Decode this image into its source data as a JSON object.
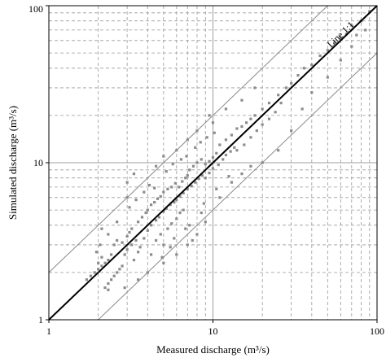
{
  "chart_data": {
    "type": "scatter",
    "title": "",
    "xlabel": "Measured discharge (m³/s)",
    "ylabel": "Simulated discharge (m³/s)",
    "xscale": "log",
    "yscale": "log",
    "xlim": [
      1,
      100
    ],
    "ylim": [
      1,
      100
    ],
    "grid": true,
    "legend": "none",
    "x_ticks": [
      1,
      10,
      100
    ],
    "x_tick_labels": [
      "1",
      "10",
      "100"
    ],
    "y_ticks": [
      1,
      10,
      100
    ],
    "y_tick_labels": [
      "1",
      "10",
      "100"
    ],
    "reference_lines": [
      {
        "label": "Line 1:1",
        "factor": 1
      },
      {
        "label": "",
        "factor": 2
      },
      {
        "label": "",
        "factor": 0.5
      }
    ],
    "annotations": [
      "Line 1:1"
    ],
    "colors": {
      "points": "#8c8c8c",
      "one_to_one": "#000000",
      "bounds": "#8a8a8a",
      "grid": "#9a9a9a"
    },
    "series": [
      {
        "values": [
          [
            1.7,
            1.8
          ],
          [
            1.8,
            1.9
          ],
          [
            1.9,
            2.0
          ],
          [
            2.0,
            2.1
          ],
          [
            2.1,
            2.2
          ],
          [
            2.2,
            2.3
          ],
          [
            2.3,
            2.4
          ],
          [
            2.4,
            2.6
          ],
          [
            2.2,
            1.6
          ],
          [
            2.3,
            1.7
          ],
          [
            2.4,
            1.8
          ],
          [
            2.5,
            1.9
          ],
          [
            2.6,
            2.0
          ],
          [
            2.7,
            2.1
          ],
          [
            2.8,
            2.2
          ],
          [
            2.3,
            1.55
          ],
          [
            2.1,
            2.5
          ],
          [
            2.0,
            2.3
          ],
          [
            2.5,
            3.0
          ],
          [
            2.6,
            3.2
          ],
          [
            2.8,
            3.1
          ],
          [
            3.0,
            3.4
          ],
          [
            3.1,
            3.6
          ],
          [
            3.2,
            3.8
          ],
          [
            2.9,
            2.6
          ],
          [
            3.0,
            2.8
          ],
          [
            3.2,
            3.0
          ],
          [
            3.4,
            3.2
          ],
          [
            3.3,
            2.4
          ],
          [
            3.5,
            2.7
          ],
          [
            3.6,
            2.9
          ],
          [
            3.8,
            3.3
          ],
          [
            3.5,
            4.2
          ],
          [
            3.7,
            4.5
          ],
          [
            3.9,
            4.8
          ],
          [
            4.0,
            5.0
          ],
          [
            4.2,
            5.4
          ],
          [
            4.4,
            5.6
          ],
          [
            4.6,
            5.9
          ],
          [
            4.8,
            6.1
          ],
          [
            4.0,
            3.7
          ],
          [
            4.2,
            4.0
          ],
          [
            4.5,
            4.3
          ],
          [
            4.7,
            4.5
          ],
          [
            5.0,
            4.9
          ],
          [
            5.2,
            5.1
          ],
          [
            5.5,
            5.4
          ],
          [
            5.8,
            5.6
          ],
          [
            4.5,
            3.2
          ],
          [
            4.8,
            3.5
          ],
          [
            5.0,
            3.0
          ],
          [
            5.3,
            3.8
          ],
          [
            5.6,
            4.1
          ],
          [
            6.0,
            4.4
          ],
          [
            6.3,
            4.8
          ],
          [
            6.6,
            5.0
          ],
          [
            5.0,
            6.5
          ],
          [
            5.3,
            6.8
          ],
          [
            5.6,
            7.0
          ],
          [
            5.9,
            7.4
          ],
          [
            6.2,
            7.0
          ],
          [
            6.5,
            7.6
          ],
          [
            6.8,
            8.0
          ],
          [
            7.0,
            8.3
          ],
          [
            6.0,
            5.8
          ],
          [
            6.3,
            6.1
          ],
          [
            6.6,
            6.4
          ],
          [
            7.0,
            6.8
          ],
          [
            7.4,
            7.1
          ],
          [
            7.8,
            7.5
          ],
          [
            8.2,
            7.9
          ],
          [
            8.6,
            8.3
          ],
          [
            7.2,
            9.0
          ],
          [
            7.6,
            9.5
          ],
          [
            8.0,
            10.0
          ],
          [
            8.5,
            10.5
          ],
          [
            9.0,
            9.8
          ],
          [
            9.5,
            10.2
          ],
          [
            10.0,
            10.8
          ],
          [
            10.5,
            11.5
          ],
          [
            9.0,
            8.0
          ],
          [
            9.5,
            8.6
          ],
          [
            10.0,
            9.2
          ],
          [
            10.8,
            9.7
          ],
          [
            11.5,
            10.5
          ],
          [
            12.0,
            11.2
          ],
          [
            12.8,
            11.8
          ],
          [
            13.5,
            12.5
          ],
          [
            11.0,
            13.0
          ],
          [
            12.0,
            14.0
          ],
          [
            13.0,
            15.0
          ],
          [
            14.0,
            16.5
          ],
          [
            15.0,
            17.0
          ],
          [
            16.0,
            18.0
          ],
          [
            17.0,
            19.0
          ],
          [
            18.0,
            20.0
          ],
          [
            14.0,
            12.0
          ],
          [
            15.5,
            13.0
          ],
          [
            17.0,
            14.5
          ],
          [
            18.5,
            16.0
          ],
          [
            20.0,
            17.5
          ],
          [
            22.0,
            19.0
          ],
          [
            24.0,
            21.0
          ],
          [
            26.0,
            24.0
          ],
          [
            20.0,
            22.0
          ],
          [
            22.0,
            24.0
          ],
          [
            25.0,
            27.0
          ],
          [
            28.0,
            30.0
          ],
          [
            30.0,
            32.0
          ],
          [
            33.0,
            36.0
          ],
          [
            36.0,
            40.0
          ],
          [
            40.0,
            42.0
          ],
          [
            45.0,
            48.0
          ],
          [
            50.0,
            52.0
          ],
          [
            55.0,
            58.0
          ],
          [
            60.0,
            62.0
          ],
          [
            65.0,
            66.0
          ],
          [
            70.0,
            75.0
          ],
          [
            80.0,
            80.0
          ],
          [
            90.0,
            92.0
          ],
          [
            3.0,
            7.5
          ],
          [
            3.3,
            8.5
          ],
          [
            3.0,
            6.0
          ],
          [
            4.5,
            9.5
          ],
          [
            5.0,
            11.0
          ],
          [
            6.0,
            12.0
          ],
          [
            7.0,
            14.0
          ],
          [
            8.0,
            16.0
          ],
          [
            2.9,
            1.6
          ],
          [
            3.5,
            1.8
          ],
          [
            4.0,
            2.0
          ],
          [
            5.0,
            2.3
          ],
          [
            6.0,
            2.6
          ],
          [
            7.0,
            3.0
          ],
          [
            8.0,
            3.5
          ],
          [
            9.0,
            4.2
          ],
          [
            4.2,
            2.6
          ],
          [
            5.5,
            2.9
          ],
          [
            6.8,
            3.8
          ],
          [
            8.5,
            4.8
          ],
          [
            11.0,
            6.0
          ],
          [
            13.0,
            7.5
          ],
          [
            15.0,
            8.5
          ],
          [
            17.0,
            9.5
          ],
          [
            9.5,
            20.0
          ],
          [
            10.0,
            18.0
          ],
          [
            12.0,
            22.0
          ],
          [
            15.0,
            25.0
          ],
          [
            18.0,
            30.0
          ],
          [
            7.5,
            3.2
          ],
          [
            20.0,
            10.0
          ],
          [
            25.0,
            12.0
          ],
          [
            30.0,
            16.0
          ],
          [
            35.0,
            22.0
          ],
          [
            40.0,
            28.0
          ],
          [
            50.0,
            35.0
          ],
          [
            60.0,
            45.0
          ],
          [
            70.0,
            55.0
          ],
          [
            75.0,
            65.0
          ],
          [
            85.0,
            70.0
          ],
          [
            2.1,
            3.8
          ],
          [
            2.3,
            3.5
          ],
          [
            2.6,
            4.2
          ],
          [
            3.1,
            5.2
          ],
          [
            3.4,
            5.8
          ],
          [
            3.8,
            6.5
          ],
          [
            4.1,
            7.2
          ],
          [
            4.4,
            6.9
          ],
          [
            5.2,
            8.8
          ],
          [
            5.7,
            9.8
          ],
          [
            6.4,
            10.5
          ],
          [
            6.9,
            11.0
          ],
          [
            7.8,
            12.5
          ],
          [
            8.4,
            13.5
          ],
          [
            9.2,
            14.5
          ],
          [
            10.2,
            15.5
          ],
          [
            2.05,
            3.0
          ],
          [
            1.95,
            2.7
          ],
          [
            4.9,
            2.5
          ],
          [
            5.8,
            3.3
          ],
          [
            7.2,
            4.0
          ],
          [
            8.8,
            5.5
          ],
          [
            10.5,
            6.8
          ],
          [
            12.5,
            8.2
          ]
        ]
      }
    ]
  }
}
